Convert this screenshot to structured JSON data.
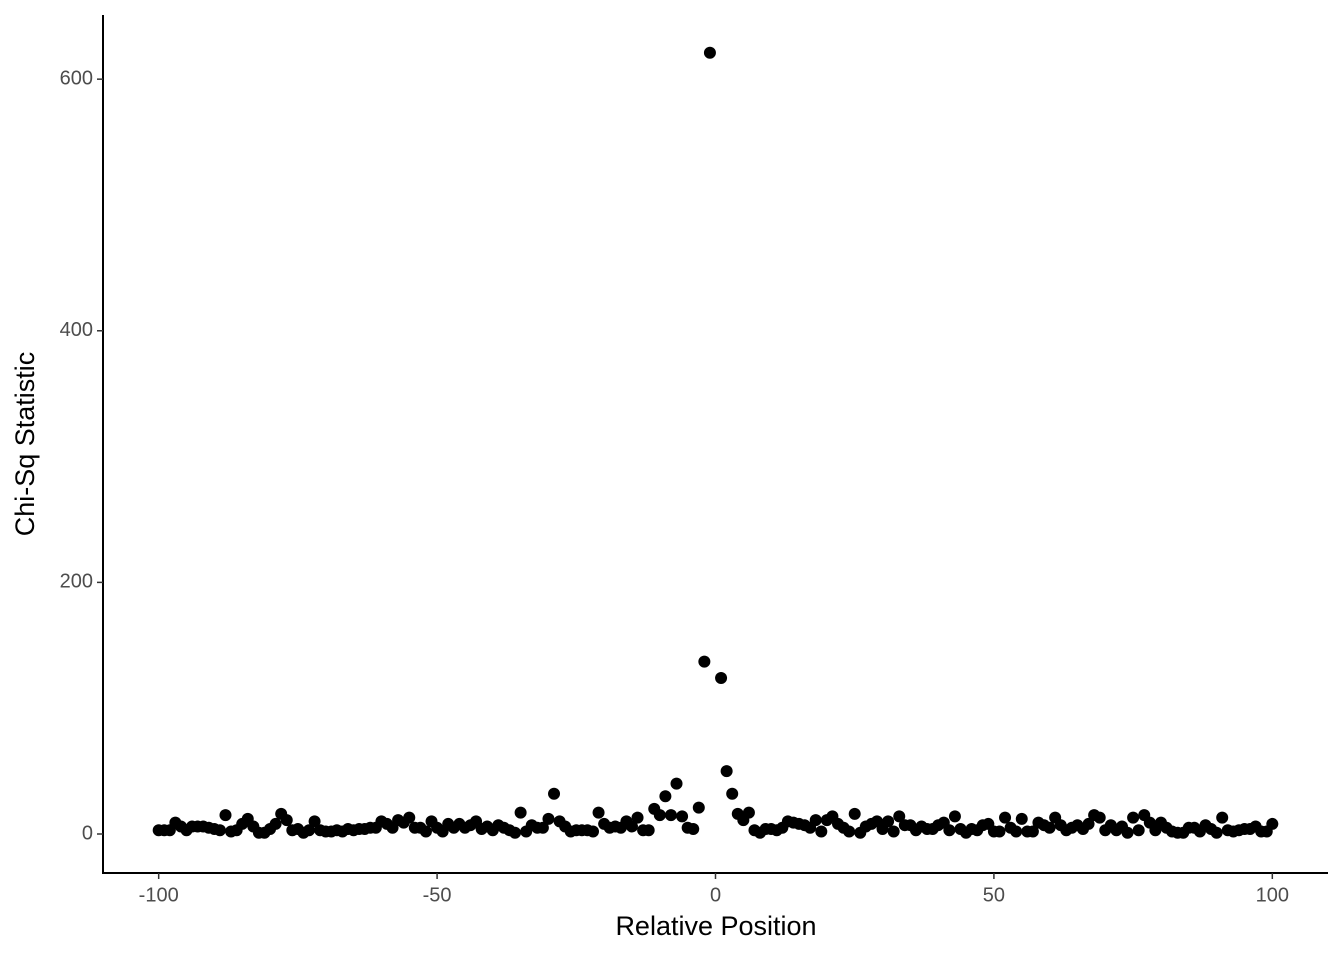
{
  "chart_data": {
    "type": "scatter",
    "x_label": "Relative Position",
    "y_label": "Chi-Sq Statistic",
    "color": "#000000",
    "xlim": [
      -110,
      110
    ],
    "ylim": [
      -31,
      651
    ],
    "xticks": [
      -100,
      -50,
      0,
      50,
      100
    ],
    "yticks": [
      0,
      200,
      400,
      600
    ],
    "x": [
      -100,
      -99,
      -98,
      -97,
      -96,
      -95,
      -94,
      -93,
      -92,
      -91,
      -90,
      -89,
      -88,
      -87,
      -86,
      -85,
      -84,
      -83,
      -82,
      -81,
      -80,
      -79,
      -78,
      -77,
      -76,
      -75,
      -74,
      -73,
      -72,
      -71,
      -70,
      -69,
      -68,
      -67,
      -66,
      -65,
      -64,
      -63,
      -62,
      -61,
      -60,
      -59,
      -58,
      -57,
      -56,
      -55,
      -54,
      -53,
      -52,
      -51,
      -50,
      -49,
      -48,
      -47,
      -46,
      -45,
      -44,
      -43,
      -42,
      -41,
      -40,
      -39,
      -38,
      -37,
      -36,
      -35,
      -34,
      -33,
      -32,
      -31,
      -30,
      -29,
      -28,
      -27,
      -26,
      -25,
      -24,
      -23,
      -22,
      -21,
      -20,
      -19,
      -18,
      -17,
      -16,
      -15,
      -14,
      -13,
      -12,
      -11,
      -10,
      -9,
      -8,
      -7,
      -6,
      -5,
      -4,
      -3,
      -2,
      -1,
      0,
      1,
      2,
      3,
      4,
      5,
      6,
      7,
      8,
      9,
      10,
      11,
      12,
      13,
      14,
      15,
      16,
      17,
      18,
      19,
      20,
      21,
      22,
      23,
      24,
      25,
      26,
      27,
      28,
      29,
      30,
      31,
      32,
      33,
      34,
      35,
      36,
      37,
      38,
      39,
      40,
      41,
      42,
      43,
      44,
      45,
      46,
      47,
      48,
      49,
      50,
      51,
      52,
      53,
      54,
      55,
      56,
      57,
      58,
      59,
      60,
      61,
      62,
      63,
      64,
      65,
      66,
      67,
      68,
      69,
      70,
      71,
      72,
      73,
      74,
      75,
      76,
      77,
      78,
      79,
      80,
      81,
      82,
      83,
      84,
      85,
      86,
      87,
      88,
      89,
      90,
      91,
      92,
      93,
      94,
      95,
      96,
      97,
      98,
      99,
      100
    ],
    "values": [
      3,
      3,
      3,
      9,
      6,
      3,
      6,
      6,
      6,
      5,
      4,
      3,
      15,
      2,
      3,
      8,
      12,
      6,
      1,
      1,
      4,
      8,
      16,
      11,
      3,
      4,
      1,
      3,
      10,
      3,
      2,
      2,
      3,
      2,
      4,
      3,
      4,
      4,
      5,
      5,
      10,
      8,
      5,
      11,
      9,
      13,
      5,
      5,
      2,
      10,
      5,
      2,
      8,
      5,
      8,
      5,
      7,
      10,
      4,
      6,
      3,
      7,
      5,
      3,
      1,
      17,
      2,
      7,
      5,
      5,
      12,
      32,
      10,
      6,
      2,
      3,
      3,
      3,
      2,
      17,
      8,
      5,
      6,
      5,
      10,
      6,
      13,
      3,
      3,
      20,
      15,
      30,
      15,
      40,
      14,
      5,
      4,
      21,
      137,
      621,
      null,
      124,
      50,
      32,
      16,
      11,
      17,
      3,
      1,
      4,
      4,
      3,
      5,
      10,
      9,
      8,
      7,
      5,
      11,
      2,
      11,
      14,
      8,
      5,
      2,
      16,
      1,
      6,
      8,
      10,
      4,
      10,
      2,
      14,
      7,
      7,
      3,
      6,
      4,
      4,
      7,
      9,
      3,
      14,
      4,
      1,
      4,
      3,
      7,
      8,
      2,
      2,
      13,
      5,
      2,
      12,
      2,
      2,
      9,
      7,
      5,
      13,
      7,
      3,
      5,
      7,
      4,
      8,
      15,
      13,
      3,
      7,
      3,
      6,
      1,
      13,
      3,
      15,
      9,
      3,
      9,
      5,
      2,
      1,
      1,
      5,
      5,
      2,
      7,
      4,
      1,
      13,
      3,
      2,
      3,
      4,
      4,
      6,
      2,
      2,
      8
    ]
  }
}
